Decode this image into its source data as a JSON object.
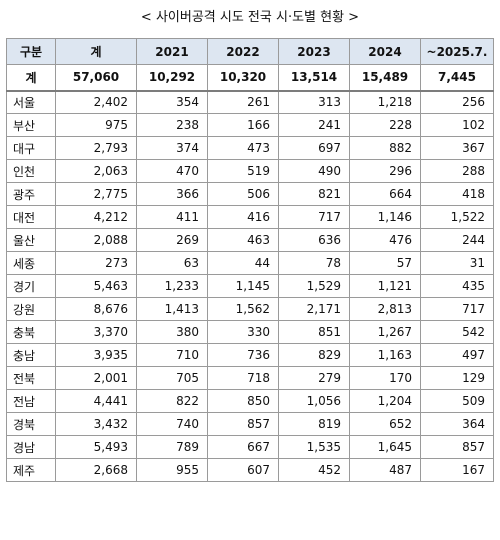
{
  "title": "< 사이버공격 시도 전국 시·도별 현황 >",
  "table": {
    "headers": [
      "구분",
      "계",
      "2021",
      "2022",
      "2023",
      "2024",
      "~2025.7."
    ],
    "total": [
      "계",
      "57,060",
      "10,292",
      "10,320",
      "13,514",
      "15,489",
      "7,445"
    ],
    "rows": [
      [
        "서울",
        "2,402",
        "354",
        "261",
        "313",
        "1,218",
        "256"
      ],
      [
        "부산",
        "975",
        "238",
        "166",
        "241",
        "228",
        "102"
      ],
      [
        "대구",
        "2,793",
        "374",
        "473",
        "697",
        "882",
        "367"
      ],
      [
        "인천",
        "2,063",
        "470",
        "519",
        "490",
        "296",
        "288"
      ],
      [
        "광주",
        "2,775",
        "366",
        "506",
        "821",
        "664",
        "418"
      ],
      [
        "대전",
        "4,212",
        "411",
        "416",
        "717",
        "1,146",
        "1,522"
      ],
      [
        "울산",
        "2,088",
        "269",
        "463",
        "636",
        "476",
        "244"
      ],
      [
        "세종",
        "273",
        "63",
        "44",
        "78",
        "57",
        "31"
      ],
      [
        "경기",
        "5,463",
        "1,233",
        "1,145",
        "1,529",
        "1,121",
        "435"
      ],
      [
        "강원",
        "8,676",
        "1,413",
        "1,562",
        "2,171",
        "2,813",
        "717"
      ],
      [
        "충북",
        "3,370",
        "380",
        "330",
        "851",
        "1,267",
        "542"
      ],
      [
        "충남",
        "3,935",
        "710",
        "736",
        "829",
        "1,163",
        "497"
      ],
      [
        "전북",
        "2,001",
        "705",
        "718",
        "279",
        "170",
        "129"
      ],
      [
        "전남",
        "4,441",
        "822",
        "850",
        "1,056",
        "1,204",
        "509"
      ],
      [
        "경북",
        "3,432",
        "740",
        "857",
        "819",
        "652",
        "364"
      ],
      [
        "경남",
        "5,493",
        "789",
        "667",
        "1,535",
        "1,645",
        "857"
      ],
      [
        "제주",
        "2,668",
        "955",
        "607",
        "452",
        "487",
        "167"
      ]
    ]
  }
}
